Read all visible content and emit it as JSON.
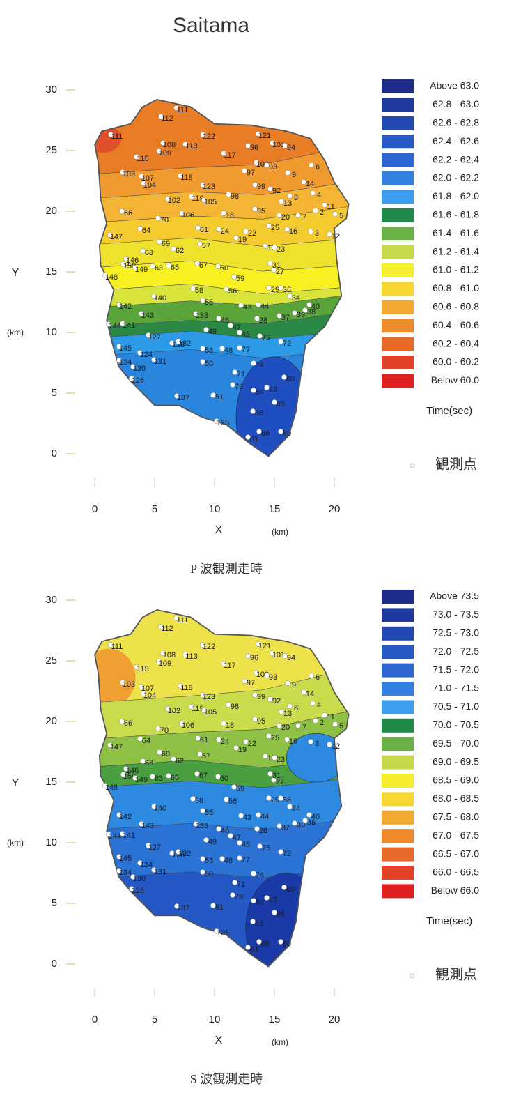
{
  "title": "Saitama",
  "stations": [
    "111",
    "112",
    "111",
    "108",
    "113",
    "122",
    "121",
    "96",
    "101",
    "94",
    "115",
    "109",
    "117",
    "103",
    "107",
    "104",
    "118",
    "123",
    "100",
    "93",
    "6",
    "9",
    "97",
    "99",
    "92",
    "14",
    "102",
    "119",
    "105",
    "98",
    "8",
    "13",
    "4",
    "66",
    "11",
    "70",
    "106",
    "18",
    "95",
    "20",
    "7",
    "2",
    "5",
    "147",
    "64",
    "61",
    "24",
    "22",
    "25",
    "16",
    "3",
    "12",
    "69",
    "19",
    "68",
    "62",
    "57",
    "15",
    "23",
    "146",
    "150",
    "149",
    "63",
    "65",
    "67",
    "60",
    "27",
    "31",
    "148",
    "59",
    "58",
    "29",
    "36",
    "140",
    "55",
    "56",
    "142",
    "43",
    "44",
    "34",
    "40",
    "38",
    "39",
    "143",
    "133",
    "46",
    "47",
    "28",
    "37",
    "144",
    "141",
    "127",
    "49",
    "45",
    "75",
    "72",
    "128",
    "132",
    "53",
    "48",
    "77",
    "145",
    "124",
    "131",
    "130",
    "50",
    "74",
    "134",
    "71",
    "60",
    "126",
    "79",
    "84",
    "83",
    "51",
    "137",
    "85",
    "88",
    "125",
    "86",
    "81",
    "80"
  ],
  "panels": [
    {
      "caption": "P 波観測走時",
      "x_axis": {
        "label": "X",
        "unit": "(km)",
        "ticks": [
          0,
          5,
          10,
          15,
          20
        ]
      },
      "y_axis": {
        "label": "Y",
        "unit": "(km)",
        "ticks": [
          0,
          5,
          10,
          15,
          20,
          25,
          30
        ]
      },
      "legend": {
        "labels": [
          "Above 63.0",
          "62.8 - 63.0",
          "62.6 - 62.8",
          "62.4 - 62.6",
          "62.2 - 62.4",
          "62.0 - 62.2",
          "61.8 - 62.0",
          "61.6 - 61.8",
          "61.4 - 61.6",
          "61.2 - 61.4",
          "61.0 - 61.2",
          "60.8 - 61.0",
          "60.6 - 60.8",
          "60.4 - 60.6",
          "60.2 - 60.4",
          "60.0 - 60.2",
          "Below 60.0"
        ],
        "colors": [
          "#1c2c88",
          "#1f3a9e",
          "#2348b2",
          "#2858c4",
          "#2d68d2",
          "#3480e0",
          "#3c9cf0",
          "#1f8a4a",
          "#6cb048",
          "#c8d84c",
          "#f4ee2c",
          "#f6d630",
          "#f2aa32",
          "#ec8a2c",
          "#e8682a",
          "#e44226",
          "#e02020"
        ],
        "unit": "Time(sec)"
      },
      "station_key": "観測点"
    },
    {
      "caption": "S 波観測走時",
      "x_axis": {
        "label": "X",
        "unit": "(km)",
        "ticks": [
          0,
          5,
          10,
          15,
          20
        ]
      },
      "y_axis": {
        "label": "Y",
        "unit": "(km)",
        "ticks": [
          0,
          5,
          10,
          15,
          20,
          25,
          30
        ]
      },
      "legend": {
        "labels": [
          "Above 73.5",
          "73.0 - 73.5",
          "72.5 - 73.0",
          "72.0 - 72.5",
          "71.5 - 72.0",
          "71.0 - 71.5",
          "70.5 - 71.0",
          "70.0 - 70.5",
          "69.5 - 70.0",
          "69.0 - 69.5",
          "68.5 - 69.0",
          "68.0 - 68.5",
          "67.5 - 68.0",
          "67.0 - 67.5",
          "66.5 - 67.0",
          "66.0 - 66.5",
          "Below 66.0"
        ],
        "colors": [
          "#1c2c88",
          "#1f3a9e",
          "#2348b2",
          "#2858c4",
          "#2d68d2",
          "#3480e0",
          "#3c9cf0",
          "#1f8a4a",
          "#6cb048",
          "#c8d84c",
          "#f4ee2c",
          "#f6d630",
          "#f2aa32",
          "#ec8a2c",
          "#e8682a",
          "#e44226",
          "#e02020"
        ],
        "unit": "Time(sec)"
      },
      "station_key": "観測点"
    }
  ]
}
